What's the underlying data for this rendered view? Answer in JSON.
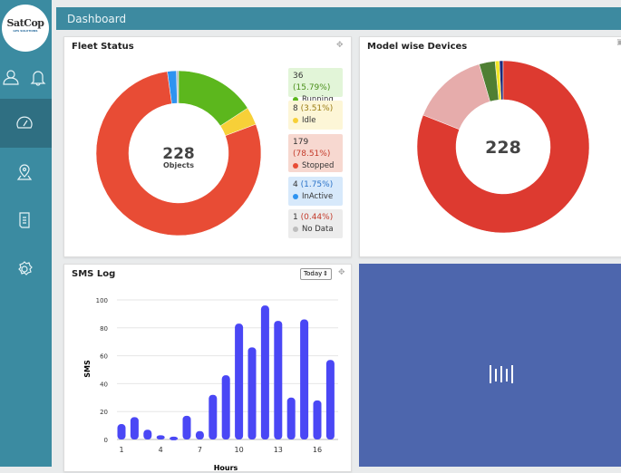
{
  "brand": {
    "logo_text": "SatCop",
    "logo_sub": "GPS SOLUTIONS"
  },
  "sidebar": {
    "items": [
      {
        "icon": "user-icon"
      },
      {
        "icon": "bell-icon"
      },
      {
        "icon": "dashboard-gauge-icon",
        "active": true
      },
      {
        "icon": "location-pin-icon"
      },
      {
        "icon": "document-icon"
      },
      {
        "icon": "gear-icon"
      }
    ]
  },
  "header": {
    "title": "Dashboard"
  },
  "fleet": {
    "title": "Fleet Status",
    "total": "228",
    "total_label": "Objects",
    "items": [
      {
        "count": "36",
        "pct": "(15.79%)",
        "label": "Running",
        "color": "#5cb71d",
        "bg": "#e2f5d8",
        "pctcolor": "#4a8f1a",
        "value": 36
      },
      {
        "count": "8",
        "pct": "(3.51%)",
        "label": "Idle",
        "color": "#f7d038",
        "bg": "#fdf6d7",
        "pctcolor": "#9b7d13",
        "value": 8
      },
      {
        "count": "179",
        "pct": "(78.51%)",
        "label": "Stopped",
        "color": "#e84c35",
        "bg": "#f7d8d0",
        "pctcolor": "#c33a2a",
        "value": 179
      },
      {
        "count": "4",
        "pct": "(1.75%)",
        "label": "InActive",
        "color": "#2e93f0",
        "bg": "#d7e9fb",
        "pctcolor": "#2a72c8",
        "value": 4
      },
      {
        "count": "1",
        "pct": "(0.44%)",
        "label": "No Data",
        "color": "#bdbdbd",
        "bg": "#ececec",
        "pctcolor": "#c33a2a",
        "value": 1
      }
    ]
  },
  "models": {
    "title": "Model wise Devices",
    "total": "228",
    "slices": [
      {
        "fraction": 0.81,
        "color": "#dd3a30"
      },
      {
        "fraction": 0.145,
        "color": "#e6acab"
      },
      {
        "fraction": 0.03,
        "color": "#4f7f33"
      },
      {
        "fraction": 0.008,
        "color": "#f1e627"
      },
      {
        "fraction": 0.007,
        "color": "#1c2a7a"
      }
    ]
  },
  "sms": {
    "title": "SMS Log",
    "period": "Today"
  },
  "chart_data": {
    "type": "bar",
    "xlabel": "Hours",
    "ylabel": "SMS",
    "ylim": [
      0,
      100
    ],
    "yticks": [
      0,
      20,
      40,
      60,
      80,
      100
    ],
    "xticks": [
      "1",
      "4",
      "7",
      "10",
      "13",
      "16"
    ],
    "categories": [
      1,
      2,
      3,
      4,
      5,
      6,
      7,
      8,
      9,
      10,
      11,
      12,
      13,
      14,
      15,
      16,
      17
    ],
    "values": [
      11,
      16,
      7,
      3,
      2,
      17,
      6,
      32,
      46,
      83,
      66,
      96,
      85,
      30,
      86,
      28,
      57
    ],
    "color": "#4a47f5",
    "grid": true
  },
  "loader": {
    "icon": "loading-bars-icon"
  }
}
